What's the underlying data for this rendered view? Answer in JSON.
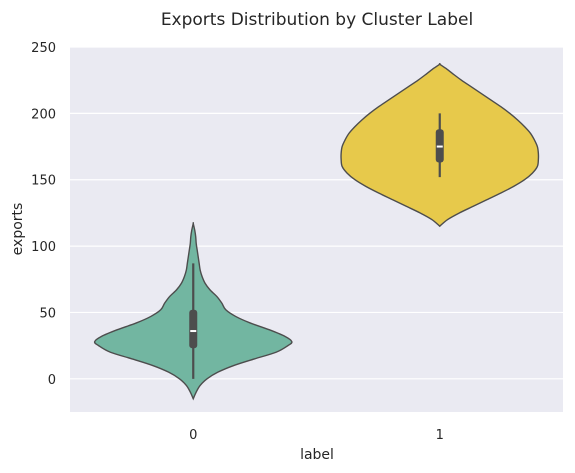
{
  "chart_data": {
    "type": "violin",
    "title": "Exports Distribution by Cluster Label",
    "xlabel": "label",
    "ylabel": "exports",
    "categories": [
      "0",
      "1"
    ],
    "ylim": [
      -25,
      250
    ],
    "yticks": [
      0,
      50,
      100,
      150,
      200,
      250
    ],
    "grid": true,
    "background": "#eaeaf2",
    "violins": [
      {
        "category": "0",
        "color": "#72b6a1",
        "min": -15,
        "max": 117,
        "whisker_low": 0,
        "q1": 23,
        "median": 36,
        "q3": 52,
        "whisker_high": 87,
        "density": [
          [
            -15,
            0.0
          ],
          [
            -10,
            0.03
          ],
          [
            -5,
            0.07
          ],
          [
            0,
            0.14
          ],
          [
            5,
            0.25
          ],
          [
            10,
            0.41
          ],
          [
            15,
            0.62
          ],
          [
            20,
            0.84
          ],
          [
            25,
            0.96
          ],
          [
            28,
            1.0
          ],
          [
            32,
            0.93
          ],
          [
            37,
            0.77
          ],
          [
            42,
            0.58
          ],
          [
            47,
            0.43
          ],
          [
            52,
            0.33
          ],
          [
            57,
            0.29
          ],
          [
            62,
            0.24
          ],
          [
            67,
            0.17
          ],
          [
            72,
            0.12
          ],
          [
            77,
            0.09
          ],
          [
            82,
            0.07
          ],
          [
            87,
            0.06
          ],
          [
            92,
            0.05
          ],
          [
            97,
            0.04
          ],
          [
            102,
            0.03
          ],
          [
            107,
            0.025
          ],
          [
            112,
            0.015
          ],
          [
            117,
            0.0
          ]
        ]
      },
      {
        "category": "1",
        "color": "#e7c94b",
        "min": 115,
        "max": 237,
        "whisker_low": 152,
        "q1": 163,
        "median": 175,
        "q3": 188,
        "whisker_high": 200,
        "density": [
          [
            115,
            0.0
          ],
          [
            120,
            0.08
          ],
          [
            125,
            0.2
          ],
          [
            130,
            0.34
          ],
          [
            135,
            0.48
          ],
          [
            140,
            0.62
          ],
          [
            145,
            0.75
          ],
          [
            150,
            0.86
          ],
          [
            155,
            0.94
          ],
          [
            160,
            0.99
          ],
          [
            165,
            1.0
          ],
          [
            170,
            1.0
          ],
          [
            175,
            0.99
          ],
          [
            180,
            0.96
          ],
          [
            185,
            0.92
          ],
          [
            190,
            0.86
          ],
          [
            195,
            0.79
          ],
          [
            200,
            0.71
          ],
          [
            205,
            0.62
          ],
          [
            210,
            0.52
          ],
          [
            215,
            0.42
          ],
          [
            220,
            0.32
          ],
          [
            225,
            0.22
          ],
          [
            230,
            0.13
          ],
          [
            234,
            0.06
          ],
          [
            237,
            0.0
          ]
        ]
      }
    ]
  }
}
